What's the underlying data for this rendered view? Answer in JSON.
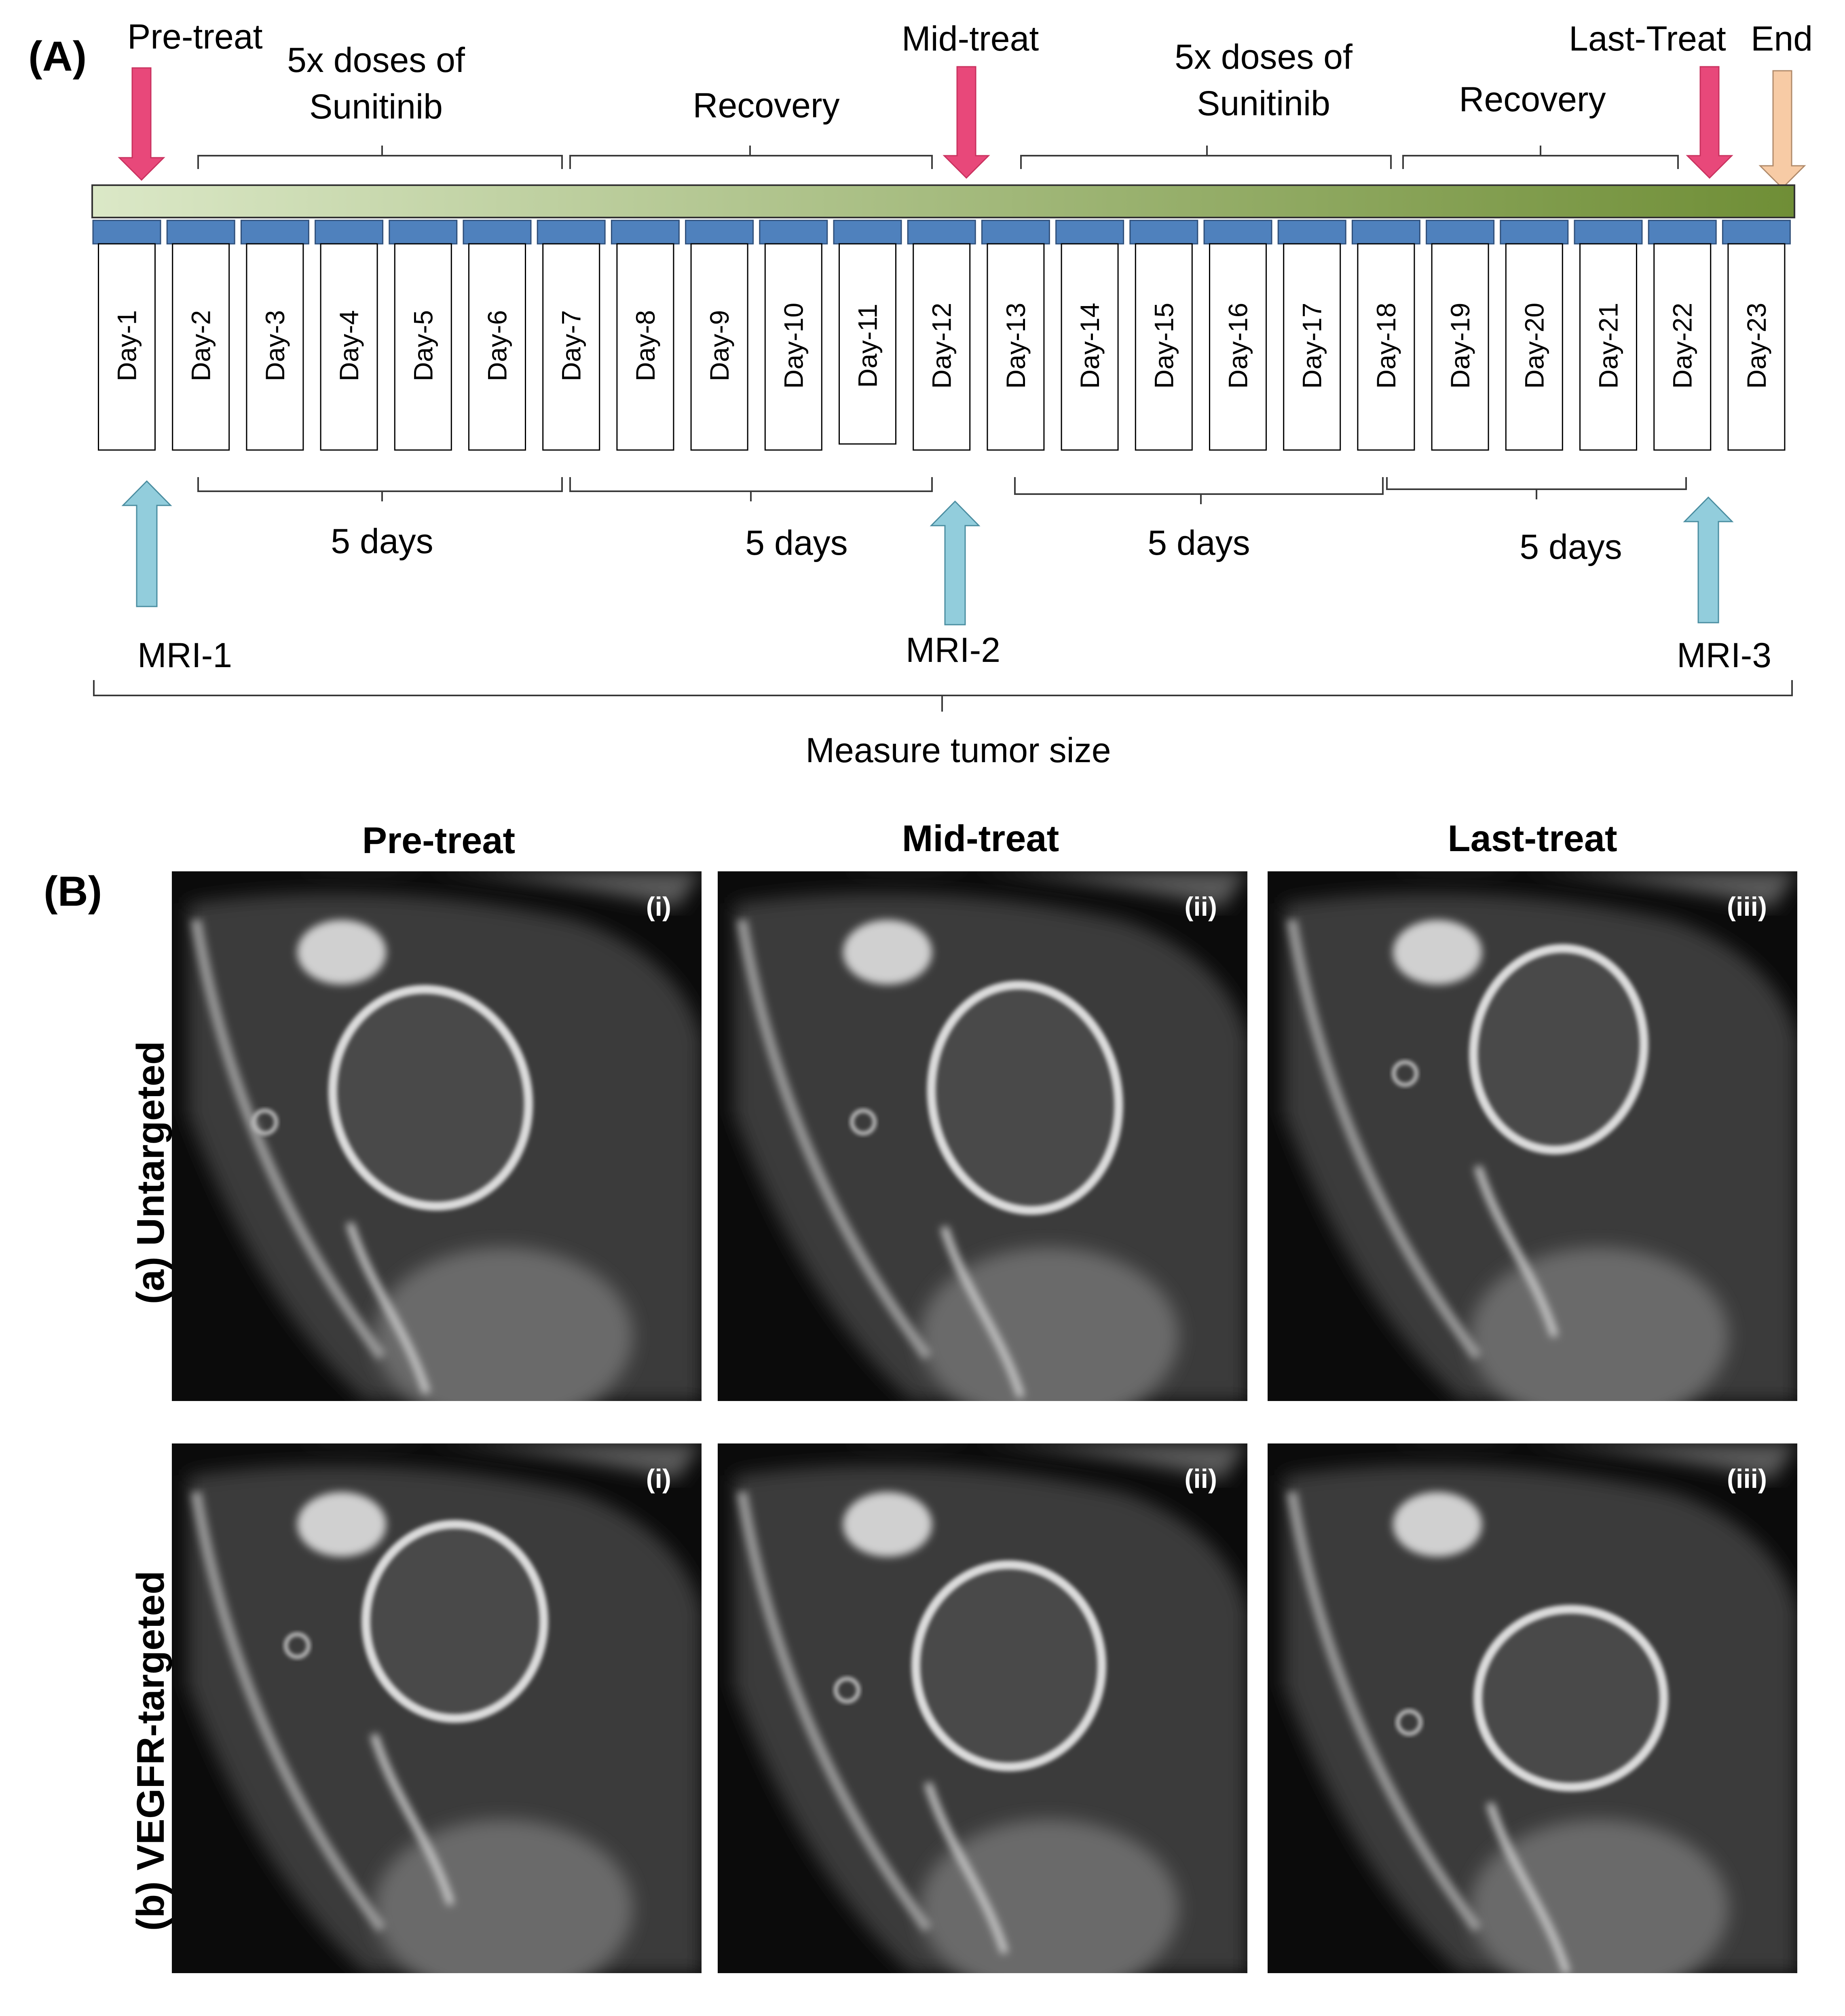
{
  "panel_a": {
    "label": "(A)",
    "events": {
      "pre_treat": "Pre-treat",
      "mid_treat": "Mid-treat",
      "last_treat": "Last-Treat",
      "end": "End"
    },
    "phases": {
      "dose1_line1": "5x doses of",
      "dose1_line2": "Sunitinib",
      "recovery1": "Recovery",
      "dose2_line1": "5x doses of",
      "dose2_line2": "Sunitinib",
      "recovery2": "Recovery"
    },
    "days": [
      "Day-1",
      "Day-2",
      "Day-3",
      "Day-4",
      "Day-5",
      "Day-6",
      "Day-7",
      "Day-8",
      "Day-9",
      "Day-10",
      "Day-11",
      "Day-12",
      "Day-13",
      "Day-14",
      "Day-15",
      "Day-16",
      "Day-17",
      "Day-18",
      "Day-19",
      "Day-20",
      "Day-21",
      "Day-22",
      "Day-23"
    ],
    "intervals": [
      "5 days",
      "5 days",
      "5 days",
      "5 days"
    ],
    "mri": [
      "MRI-1",
      "MRI-2",
      "MRI-3"
    ],
    "measure": "Measure tumor size",
    "colors": {
      "treat_arrow": "#e8487a",
      "end_arrow": "#f7cba5",
      "mri_arrow": "#92cddc",
      "timeline_start": "#dbe8c7",
      "timeline_end": "#6f8e36",
      "day_cap": "#4f81bd"
    }
  },
  "panel_b": {
    "label": "(B)",
    "columns": [
      "Pre-treat",
      "Mid-treat",
      "Last-treat"
    ],
    "rows": [
      "(a) Untargeted",
      "(b) VEGFR-targeted"
    ],
    "subpanels": [
      "(i)",
      "(ii)",
      "(iii)"
    ]
  }
}
